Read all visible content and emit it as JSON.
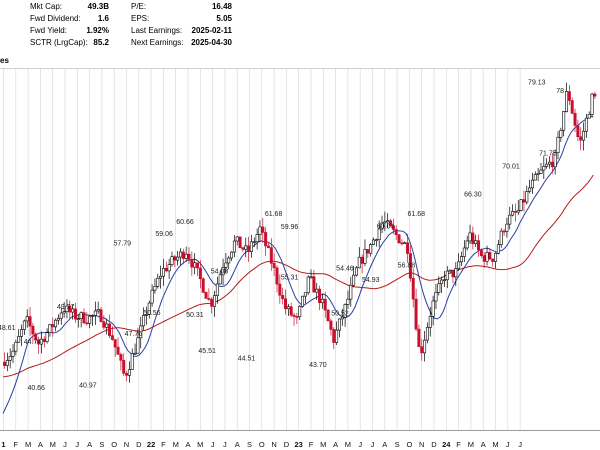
{
  "stats": {
    "col1": [
      {
        "label": "Mkt Cap:",
        "value": "49.3B"
      },
      {
        "label": "Fwd Dividend:",
        "value": "1.6"
      },
      {
        "label": "Fwd Yield:",
        "value": "1.92%"
      },
      {
        "label": "SCTR (LrgCap):",
        "value": "85.2"
      }
    ],
    "col2": [
      {
        "label": "P/E:",
        "value": "16.48"
      },
      {
        "label": "EPS:",
        "value": "5.05"
      },
      {
        "label": "Last Earnings:",
        "value": "2025-02-11"
      },
      {
        "label": "Next Earnings:",
        "value": "2025-04-30"
      }
    ],
    "cut_text": "es"
  },
  "colors": {
    "up_candle": "#000000",
    "down_candle": "#c8102e",
    "ma_short": "#2b3fa0",
    "ma_long": "#b31b1b",
    "grid": "#d4d4d4"
  },
  "chart_data": {
    "type": "candlestick",
    "ylim": [
      34,
      82
    ],
    "overlays": [
      "50-day moving average (blue)",
      "200-day moving average (red)"
    ],
    "grid": true,
    "x_axis_ticks": [
      "1",
      "F",
      "M",
      "A",
      "M",
      "J",
      "J",
      "A",
      "S",
      "O",
      "N",
      "D",
      "22",
      "F",
      "M",
      "A",
      "M",
      "J",
      "J",
      "A",
      "S",
      "O",
      "N",
      "D",
      "23",
      "F",
      "M",
      "A",
      "M",
      "J",
      "J",
      "A",
      "S",
      "O",
      "N",
      "D",
      "24",
      "F",
      "M",
      "A",
      "M",
      "J",
      "J"
    ],
    "year_ticks": [
      "1",
      "22",
      "23",
      "24"
    ],
    "price_path": [
      [
        0,
        43.0
      ],
      [
        1,
        44.5
      ],
      [
        2,
        48.6
      ],
      [
        3,
        45.5
      ],
      [
        4,
        47.5
      ],
      [
        5,
        50.2
      ],
      [
        6,
        49.1
      ],
      [
        7,
        48.8
      ],
      [
        8,
        49.4
      ],
      [
        9,
        46.2
      ],
      [
        10,
        41.0
      ],
      [
        11,
        45.5
      ],
      [
        12,
        51.0
      ],
      [
        13,
        55.0
      ],
      [
        14,
        56.5
      ],
      [
        15,
        57.79
      ],
      [
        16,
        54.5
      ],
      [
        17,
        50.56
      ],
      [
        18,
        56.0
      ],
      [
        19,
        59.06
      ],
      [
        20,
        57.5
      ],
      [
        21,
        60.66
      ],
      [
        22,
        56.0
      ],
      [
        23,
        50.31
      ],
      [
        24,
        48.5
      ],
      [
        25,
        54.08
      ],
      [
        26,
        51.0
      ],
      [
        27,
        46.0
      ],
      [
        28,
        50.5
      ],
      [
        29,
        56.0
      ],
      [
        30,
        58.5
      ],
      [
        31,
        61.68
      ],
      [
        32,
        59.96
      ],
      [
        33,
        58.2
      ],
      [
        34,
        43.7
      ],
      [
        35,
        50.52
      ],
      [
        36,
        54.46
      ],
      [
        37,
        54.93
      ],
      [
        38,
        60.04
      ],
      [
        39,
        57.0
      ],
      [
        40,
        56.88
      ],
      [
        41,
        61.68
      ],
      [
        42,
        63.0
      ],
      [
        43,
        66.3
      ],
      [
        44,
        68.5
      ],
      [
        45,
        70.01
      ],
      [
        46,
        79.13
      ],
      [
        47,
        71.75
      ],
      [
        48,
        78.0
      ]
    ],
    "annotations": [
      {
        "month": 0.3,
        "value": 48.61,
        "label": "48.61",
        "pos": "below"
      },
      {
        "month": 2.4,
        "value": 44.74,
        "label": "44.74",
        "pos": "above"
      },
      {
        "month": 2.7,
        "value": 40.66,
        "label": "40.66",
        "pos": "below"
      },
      {
        "month": 5.1,
        "value": 49.37,
        "label": "49.37",
        "pos": "above"
      },
      {
        "month": 6.9,
        "value": 40.97,
        "label": "40.97",
        "pos": "below"
      },
      {
        "month": 9.7,
        "value": 57.79,
        "label": "57.79",
        "pos": "above"
      },
      {
        "month": 10.6,
        "value": 47.76,
        "label": "47.76",
        "pos": "below"
      },
      {
        "month": 12.1,
        "value": 50.56,
        "label": "50.56",
        "pos": "below"
      },
      {
        "month": 13.1,
        "value": 59.06,
        "label": "59.06",
        "pos": "above"
      },
      {
        "month": 14.8,
        "value": 60.66,
        "label": "60.66",
        "pos": "above"
      },
      {
        "month": 15.6,
        "value": 50.31,
        "label": "50.31",
        "pos": "below"
      },
      {
        "month": 16.6,
        "value": 45.51,
        "label": "45.51",
        "pos": "below"
      },
      {
        "month": 17.6,
        "value": 54.08,
        "label": "54.08",
        "pos": "above"
      },
      {
        "month": 19.8,
        "value": 44.51,
        "label": "44.51",
        "pos": "below"
      },
      {
        "month": 22.0,
        "value": 61.68,
        "label": "61.68",
        "pos": "above"
      },
      {
        "month": 23.3,
        "value": 59.96,
        "label": "59.96",
        "pos": "above"
      },
      {
        "month": 23.3,
        "value": 55.31,
        "label": "55.31",
        "pos": "below"
      },
      {
        "month": 25.6,
        "value": 43.7,
        "label": "43.70",
        "pos": "below"
      },
      {
        "month": 27.4,
        "value": 50.52,
        "label": "50.52",
        "pos": "below"
      },
      {
        "month": 27.8,
        "value": 54.46,
        "label": "54.46",
        "pos": "above"
      },
      {
        "month": 29.9,
        "value": 54.93,
        "label": "54.93",
        "pos": "below"
      },
      {
        "month": 31.1,
        "value": 60.04,
        "label": "60.04",
        "pos": "above"
      },
      {
        "month": 32.8,
        "value": 56.88,
        "label": "56.88",
        "pos": "below"
      },
      {
        "month": 33.6,
        "value": 61.68,
        "label": "61.68",
        "pos": "above"
      },
      {
        "month": 38.2,
        "value": 66.3,
        "label": "66.30",
        "pos": "below"
      },
      {
        "month": 41.3,
        "value": 70.01,
        "label": "70.01",
        "pos": "below"
      },
      {
        "month": 43.4,
        "value": 79.13,
        "label": "79.13",
        "pos": "above"
      },
      {
        "month": 44.3,
        "value": 71.75,
        "label": "71.75",
        "pos": "below"
      },
      {
        "month": 45.3,
        "value": 78.0,
        "label": "78",
        "pos": "above"
      }
    ]
  }
}
